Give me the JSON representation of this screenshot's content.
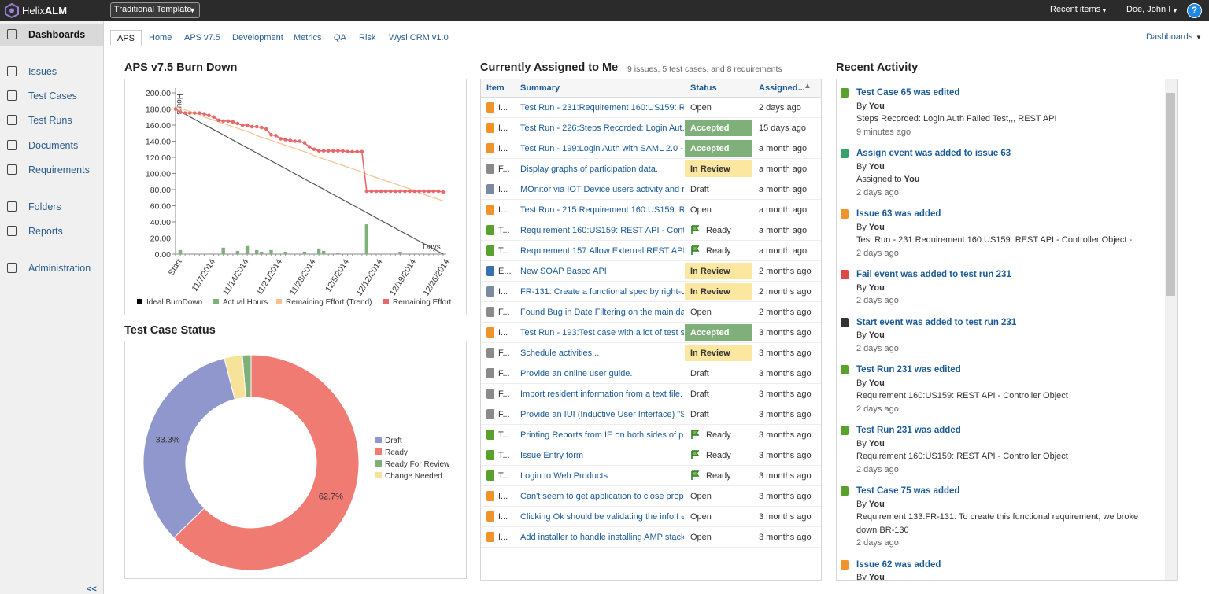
{
  "header": {
    "logo_prefix": "Helix",
    "logo_suffix": "ALM",
    "template": "Traditional Template",
    "recent_items": "Recent items",
    "user": "Doe, John I",
    "help": "?"
  },
  "sidebar": {
    "items": [
      "Dashboards",
      "Issues",
      "Test Cases",
      "Test Runs",
      "Documents",
      "Requirements",
      "Folders",
      "Reports",
      "Administration"
    ],
    "selected": 0,
    "collapse": "<<"
  },
  "tabs": {
    "items": [
      "APS",
      "Home",
      "APS v7.5",
      "Development",
      "Metrics",
      "QA",
      "Risk",
      "Wysi CRM v1.0"
    ],
    "selected": 0,
    "menu": "Dashboards"
  },
  "chart_data": [
    {
      "type": "line",
      "title": "APS v7.5 Burn Down",
      "ylabel": "Hours",
      "xlabel": "Days",
      "categories": [
        "Start",
        null,
        null,
        null,
        null,
        null,
        null,
        "11/7/2014",
        null,
        null,
        null,
        null,
        null,
        null,
        "11/14/2014",
        null,
        null,
        null,
        null,
        null,
        null,
        "11/21/2014",
        null,
        null,
        null,
        null,
        null,
        null,
        "11/28/2014",
        null,
        null,
        null,
        null,
        null,
        null,
        "12/5/2014",
        null,
        null,
        null,
        null,
        null,
        null,
        "12/12/2014",
        null,
        null,
        null,
        null,
        null,
        null,
        "12/19/2014",
        null,
        null,
        null,
        null,
        null,
        null,
        "12/26/2014"
      ],
      "series": [
        {
          "name": "Ideal BurnDown",
          "type": "line",
          "color": "#000000",
          "line_color": "#555555",
          "values": [
            180,
            176.8,
            173.6,
            170.4,
            167.1,
            163.9,
            160.7,
            157.5,
            154.3,
            151.1,
            147.9,
            144.6,
            141.4,
            138.2,
            135,
            131.8,
            128.6,
            125.4,
            122.1,
            118.9,
            115.7,
            112.5,
            109.3,
            106.1,
            102.9,
            99.6,
            96.4,
            93.2,
            90,
            86.8,
            83.6,
            80.4,
            77.1,
            73.9,
            70.7,
            67.5,
            64.3,
            61.1,
            57.9,
            54.6,
            51.4,
            48.2,
            45,
            41.8,
            38.6,
            35.4,
            32.1,
            28.9,
            25.7,
            22.5,
            19.3,
            16.1,
            12.9,
            9.6,
            6.4,
            3.2,
            0
          ]
        },
        {
          "name": "Actual Hours",
          "type": "bar",
          "color": "#7fb07a",
          "values": [
            0,
            5,
            0,
            0,
            0,
            0,
            0,
            0,
            0,
            0,
            8,
            0,
            0,
            4,
            0,
            10,
            0,
            5,
            3,
            0,
            5,
            0,
            0,
            3,
            0,
            0,
            0,
            3,
            0,
            0,
            7,
            4,
            0,
            0,
            2,
            0,
            0,
            0,
            0,
            0,
            37,
            0,
            0,
            0,
            0,
            0,
            0,
            3,
            0,
            0,
            0,
            0,
            0,
            0,
            0,
            0,
            0
          ]
        },
        {
          "name": "Remaining Effort (Trend)",
          "type": "line",
          "color": "#f9c08f",
          "values": [
            183,
            181,
            179,
            177,
            175,
            173,
            170,
            168,
            166,
            164,
            162,
            160,
            158,
            156,
            154,
            152,
            150,
            147,
            145,
            143,
            141,
            139,
            137,
            135,
            133,
            131,
            129,
            127,
            125,
            122,
            120,
            118,
            116,
            114,
            112,
            110,
            108,
            106,
            104,
            102,
            99,
            97,
            95,
            93,
            91,
            89,
            87,
            85,
            83,
            81,
            79,
            76,
            74,
            72,
            70,
            68,
            66
          ]
        },
        {
          "name": "Remaining Effort",
          "type": "line",
          "markers": true,
          "color": "#e8686a",
          "values": [
            180,
            176,
            175,
            175,
            175,
            175,
            174,
            172,
            170,
            166,
            165,
            165,
            164,
            162,
            160,
            160,
            158,
            158,
            157,
            155,
            148,
            147,
            143,
            142,
            141,
            140,
            140,
            138,
            133,
            130,
            128,
            128,
            128,
            128,
            128,
            128,
            127,
            127,
            127,
            127,
            78,
            78,
            78,
            78,
            78,
            78,
            78,
            78,
            78,
            78,
            78,
            78,
            78,
            78,
            78,
            78,
            77
          ]
        }
      ],
      "ylim": [
        0,
        200
      ],
      "yticks": [
        {
          "value": 0,
          "label": "0.00"
        },
        {
          "value": 20,
          "label": "20.00"
        },
        {
          "value": 40,
          "label": "40.00"
        },
        {
          "value": 60,
          "label": "60.00"
        },
        {
          "value": 80,
          "label": "80.00"
        },
        {
          "value": 100,
          "label": "100.00"
        },
        {
          "value": 120,
          "label": "120.00"
        },
        {
          "value": 140,
          "label": "140.00"
        },
        {
          "value": 160,
          "label": "160.00"
        },
        {
          "value": 180,
          "label": "180.00"
        },
        {
          "value": 200,
          "label": "200.00"
        }
      ],
      "grid": false,
      "legend": "bottom"
    },
    {
      "type": "pie",
      "donut": true,
      "title": "Test Case Status",
      "categories": [
        "Draft",
        "Ready",
        "Ready For Review",
        "Change Needed"
      ],
      "values": [
        33.3,
        62.7,
        1.3,
        2.7
      ],
      "value_labels": [
        "33.3%",
        "62.7%",
        null,
        null
      ],
      "colors": [
        "#8f97cc",
        "#f07b72",
        "#7fb07a",
        "#f7e29a"
      ],
      "legend": "right"
    }
  ],
  "assigned": {
    "title": "Currently Assigned to Me",
    "summary": "9 issues, 5 test cases, and 8 requirements",
    "columns": [
      "Item",
      "Summary",
      "Status",
      "Assigned..."
    ],
    "rows": [
      {
        "item": "I...",
        "icon_color": "#f0932b",
        "summary": "Test Run - 231:Requirement 160:US159: R...",
        "status": "Open",
        "assigned": "2 days ago"
      },
      {
        "item": "I...",
        "icon_color": "#f0932b",
        "summary": "Test Run - 226:Steps Recorded: Login Aut...",
        "status": "Accepted",
        "status_color": "#7fb07a",
        "assigned": "15 days ago"
      },
      {
        "item": "I...",
        "icon_color": "#f0932b",
        "summary": "Test Run - 199:Login Auth with SAML 2.0 -...",
        "status": "Accepted",
        "status_color": "#7fb07a",
        "assigned": "a month ago"
      },
      {
        "item": "F...",
        "icon_color": "#8a8a8a",
        "summary": "Display graphs of participation data.",
        "status": "In Review",
        "status_color": "#fce7a0",
        "assigned": "a month ago"
      },
      {
        "item": "I...",
        "icon_color": "#7a8aa0",
        "summary": "MOnitor via IOT Device users activity and r...",
        "status": "Draft",
        "assigned": "a month ago"
      },
      {
        "item": "I...",
        "icon_color": "#f0932b",
        "summary": "Test Run - 215:Requirement 160:US159: R...",
        "status": "Open",
        "assigned": "a month ago"
      },
      {
        "item": "T...",
        "icon_color": "#5aa02c",
        "summary": "Requirement 160:US159: REST API - Cont...",
        "status": "Ready",
        "status_icon": "flag",
        "assigned": "a month ago"
      },
      {
        "item": "T...",
        "icon_color": "#5aa02c",
        "summary": "Requirement 157:Allow External REST API...",
        "status": "Ready",
        "status_icon": "flag",
        "assigned": "a month ago"
      },
      {
        "item": "E...",
        "icon_color": "#3a6fb0",
        "summary": "New SOAP Based API",
        "status": "In Review",
        "status_color": "#fce7a0",
        "assigned": "2 months ago"
      },
      {
        "item": "I...",
        "icon_color": "#7a8aa0",
        "summary": "FR-131: Create a functional spec by right-c...",
        "status": "In Review",
        "status_color": "#fce7a0",
        "assigned": "2 months ago"
      },
      {
        "item": "F...",
        "icon_color": "#8a8a8a",
        "summary": "Found Bug in Date Filtering on the main da...",
        "status": "Open",
        "assigned": "2 months ago"
      },
      {
        "item": "I...",
        "icon_color": "#f0932b",
        "summary": "Test Run - 193:Test case with a lot of test s...",
        "status": "Accepted",
        "status_color": "#7fb07a",
        "assigned": "3 months ago"
      },
      {
        "item": "F...",
        "icon_color": "#8a8a8a",
        "summary": "Schedule activities...",
        "status": "In Review",
        "status_color": "#fce7a0",
        "assigned": "3 months ago"
      },
      {
        "item": "F...",
        "icon_color": "#8a8a8a",
        "summary": "Provide an online user guide.",
        "status": "Draft",
        "assigned": "3 months ago"
      },
      {
        "item": "F...",
        "icon_color": "#8a8a8a",
        "summary": "Import resident information from a text file.",
        "status": "Draft",
        "assigned": "3 months ago"
      },
      {
        "item": "F...",
        "icon_color": "#8a8a8a",
        "summary": "Provide an IUI (Inductive User Interface) \"S...",
        "status": "Draft",
        "assigned": "3 months ago"
      },
      {
        "item": "T...",
        "icon_color": "#5aa02c",
        "summary": "Printing Reports from IE on both sides of p...",
        "status": "Ready",
        "status_icon": "flag",
        "assigned": "3 months ago"
      },
      {
        "item": "T...",
        "icon_color": "#5aa02c",
        "summary": "Issue Entry form",
        "status": "Ready",
        "status_icon": "flag",
        "assigned": "3 months ago"
      },
      {
        "item": "T...",
        "icon_color": "#5aa02c",
        "summary": "Login to Web Products",
        "status": "Ready",
        "status_icon": "flag",
        "assigned": "3 months ago"
      },
      {
        "item": "I...",
        "icon_color": "#f0932b",
        "summary": "Can't seem to get application to close prop...",
        "status": "Open",
        "assigned": "3 months ago"
      },
      {
        "item": "I...",
        "icon_color": "#f0932b",
        "summary": "Clicking Ok should be validating the info I e...",
        "status": "Open",
        "assigned": "3 months ago"
      },
      {
        "item": "I...",
        "icon_color": "#f0932b",
        "summary": "Add installer to handle installing AMP stack...",
        "status": "Open",
        "assigned": "3 months ago"
      }
    ]
  },
  "activity": {
    "title": "Recent Activity",
    "items": [
      {
        "title": "Test Case 65 was edited",
        "icon_color": "#5aa02c",
        "by": "By",
        "user": "You",
        "detail": "Steps Recorded: Login Auth Failed Test,,, REST API",
        "time": "9 minutes ago"
      },
      {
        "title": "Assign event was added to issue 63",
        "icon_color": "#3aa06a",
        "by": "By",
        "user": "You",
        "detail": "Assigned to",
        "detail_user": "You",
        "time": "2 days ago"
      },
      {
        "title": "Issue 63 was added",
        "icon_color": "#f0932b",
        "by": "By",
        "user": "You",
        "detail": "Test Run - 231:Requirement 160:US159: REST API - Controller Object -",
        "time": "2 days ago"
      },
      {
        "title": "Fail event was added to test run 231",
        "icon_color": "#e04848",
        "by": "By",
        "user": "You",
        "time": "2 days ago"
      },
      {
        "title": "Start event was added to test run 231",
        "icon_color": "#333333",
        "by": "By",
        "user": "You",
        "time": "2 days ago"
      },
      {
        "title": "Test Run 231 was edited",
        "icon_color": "#5aa02c",
        "by": "By",
        "user": "You",
        "detail": "Requirement 160:US159: REST API - Controller Object",
        "time": "2 days ago"
      },
      {
        "title": "Test Run 231 was added",
        "icon_color": "#5aa02c",
        "by": "By",
        "user": "You",
        "detail": "Requirement 160:US159: REST API - Controller Object",
        "time": "2 days ago"
      },
      {
        "title": "Test Case 75 was added",
        "icon_color": "#5aa02c",
        "by": "By",
        "user": "You",
        "detail": "Requirement 133:FR-131: To create this functional requirement, we broke down BR-130",
        "time": "2 days ago"
      },
      {
        "title": "Issue 62 was added",
        "icon_color": "#f0932b",
        "by": "By",
        "user": "You"
      }
    ]
  }
}
